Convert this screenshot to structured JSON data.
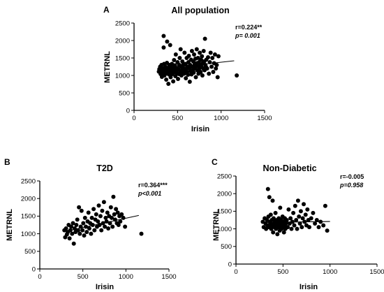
{
  "chart_data": [
    {
      "type": "scatter",
      "panel_label": "A",
      "title": "All population",
      "xlabel": "Irisin",
      "ylabel": "METRNL",
      "xlim": [
        0,
        1500
      ],
      "ylim": [
        0,
        2500
      ],
      "xticks": [
        0,
        500,
        1000,
        1500
      ],
      "yticks": [
        0,
        500,
        1000,
        1500,
        2000,
        2500
      ],
      "grid": false,
      "stats": {
        "r": "r=0.224**",
        "p": "p= 0.001"
      },
      "trendline": {
        "x": [
          280,
          1150
        ],
        "y": [
          1180,
          1420
        ]
      },
      "points": [
        [
          285,
          1110
        ],
        [
          290,
          1180
        ],
        [
          300,
          1250
        ],
        [
          305,
          1040
        ],
        [
          310,
          1130
        ],
        [
          315,
          1300
        ],
        [
          320,
          960
        ],
        [
          325,
          1210
        ],
        [
          330,
          1060
        ],
        [
          335,
          1160
        ],
        [
          340,
          2130
        ],
        [
          340,
          1800
        ],
        [
          345,
          1330
        ],
        [
          350,
          1000
        ],
        [
          355,
          1090
        ],
        [
          360,
          1250
        ],
        [
          365,
          1180
        ],
        [
          370,
          880
        ],
        [
          372,
          1060
        ],
        [
          378,
          1360
        ],
        [
          380,
          1970
        ],
        [
          385,
          1120
        ],
        [
          390,
          1210
        ],
        [
          395,
          760
        ],
        [
          400,
          1030
        ],
        [
          405,
          1300
        ],
        [
          410,
          1150
        ],
        [
          415,
          1870
        ],
        [
          420,
          950
        ],
        [
          425,
          1080
        ],
        [
          430,
          1240
        ],
        [
          435,
          1330
        ],
        [
          440,
          1040
        ],
        [
          445,
          1150
        ],
        [
          450,
          830
        ],
        [
          455,
          1200
        ],
        [
          460,
          1440
        ],
        [
          465,
          1100
        ],
        [
          470,
          1290
        ],
        [
          475,
          980
        ],
        [
          480,
          1600
        ],
        [
          485,
          1130
        ],
        [
          490,
          1060
        ],
        [
          495,
          1210
        ],
        [
          500,
          1380
        ],
        [
          505,
          900
        ],
        [
          510,
          1170
        ],
        [
          515,
          1040
        ],
        [
          520,
          1300
        ],
        [
          525,
          1500
        ],
        [
          530,
          1100
        ],
        [
          535,
          1750
        ],
        [
          540,
          1250
        ],
        [
          545,
          1000
        ],
        [
          550,
          1150
        ],
        [
          555,
          1400
        ],
        [
          560,
          1080
        ],
        [
          565,
          1300
        ],
        [
          570,
          1200
        ],
        [
          575,
          1050
        ],
        [
          580,
          1650
        ],
        [
          585,
          1150
        ],
        [
          590,
          1330
        ],
        [
          595,
          920
        ],
        [
          600,
          1200
        ],
        [
          605,
          1500
        ],
        [
          610,
          1100
        ],
        [
          615,
          1250
        ],
        [
          620,
          1020
        ],
        [
          625,
          1380
        ],
        [
          630,
          1560
        ],
        [
          635,
          1200
        ],
        [
          640,
          820
        ],
        [
          645,
          1300
        ],
        [
          650,
          1120
        ],
        [
          655,
          1450
        ],
        [
          660,
          1030
        ],
        [
          665,
          1700
        ],
        [
          670,
          1250
        ],
        [
          675,
          1150
        ],
        [
          680,
          1400
        ],
        [
          685,
          1080
        ],
        [
          690,
          1600
        ],
        [
          695,
          1300
        ],
        [
          700,
          1200
        ],
        [
          705,
          1480
        ],
        [
          710,
          950
        ],
        [
          715,
          1350
        ],
        [
          720,
          1750
        ],
        [
          725,
          1150
        ],
        [
          730,
          1270
        ],
        [
          735,
          1500
        ],
        [
          740,
          1050
        ],
        [
          745,
          1380
        ],
        [
          750,
          1200
        ],
        [
          755,
          1650
        ],
        [
          760,
          1300
        ],
        [
          765,
          1100
        ],
        [
          770,
          1450
        ],
        [
          775,
          1250
        ],
        [
          780,
          1550
        ],
        [
          785,
          1000
        ],
        [
          790,
          1350
        ],
        [
          795,
          1200
        ],
        [
          800,
          1700
        ],
        [
          805,
          1400
        ],
        [
          810,
          1150
        ],
        [
          815,
          2050
        ],
        [
          820,
          1300
        ],
        [
          825,
          1250
        ],
        [
          830,
          1450
        ],
        [
          840,
          1200
        ],
        [
          850,
          1520
        ],
        [
          860,
          1050
        ],
        [
          870,
          1380
        ],
        [
          880,
          1650
        ],
        [
          890,
          1250
        ],
        [
          900,
          1500
        ],
        [
          910,
          1100
        ],
        [
          920,
          1350
        ],
        [
          930,
          1600
        ],
        [
          940,
          1200
        ],
        [
          950,
          1300
        ],
        [
          960,
          950
        ],
        [
          970,
          1550
        ],
        [
          1180,
          1000
        ]
      ]
    },
    {
      "type": "scatter",
      "panel_label": "B",
      "title": "T2D",
      "xlabel": "Irisin",
      "ylabel": "METRNL",
      "xlim": [
        0,
        1500
      ],
      "ylim": [
        0,
        2500
      ],
      "xticks": [
        0,
        500,
        1000,
        1500
      ],
      "yticks": [
        0,
        500,
        1000,
        1500,
        2000,
        2500
      ],
      "grid": false,
      "stats": {
        "r": "r=0.364***",
        "p": "p<0.001"
      },
      "trendline": {
        "x": [
          280,
          1150
        ],
        "y": [
          1060,
          1520
        ]
      },
      "points": [
        [
          285,
          1100
        ],
        [
          295,
          900
        ],
        [
          305,
          1150
        ],
        [
          315,
          980
        ],
        [
          325,
          1050
        ],
        [
          335,
          1250
        ],
        [
          345,
          870
        ],
        [
          355,
          1100
        ],
        [
          365,
          1200
        ],
        [
          375,
          1000
        ],
        [
          385,
          1300
        ],
        [
          395,
          720
        ],
        [
          405,
          1150
        ],
        [
          415,
          1050
        ],
        [
          425,
          1250
        ],
        [
          435,
          1400
        ],
        [
          445,
          1100
        ],
        [
          455,
          1750
        ],
        [
          465,
          1000
        ],
        [
          475,
          1200
        ],
        [
          485,
          1650
        ],
        [
          495,
          1100
        ],
        [
          505,
          1300
        ],
        [
          515,
          950
        ],
        [
          525,
          1450
        ],
        [
          535,
          1200
        ],
        [
          545,
          1050
        ],
        [
          555,
          1350
        ],
        [
          565,
          1600
        ],
        [
          575,
          1150
        ],
        [
          585,
          1300
        ],
        [
          595,
          1000
        ],
        [
          605,
          1450
        ],
        [
          615,
          1250
        ],
        [
          625,
          1700
        ],
        [
          635,
          1100
        ],
        [
          645,
          1400
        ],
        [
          655,
          1550
        ],
        [
          665,
          1200
        ],
        [
          675,
          1350
        ],
        [
          685,
          1800
        ],
        [
          695,
          1250
        ],
        [
          705,
          1500
        ],
        [
          715,
          1100
        ],
        [
          725,
          1650
        ],
        [
          735,
          1300
        ],
        [
          745,
          1900
        ],
        [
          755,
          1200
        ],
        [
          765,
          1450
        ],
        [
          775,
          1350
        ],
        [
          785,
          1600
        ],
        [
          795,
          1150
        ],
        [
          805,
          1500
        ],
        [
          815,
          1300
        ],
        [
          825,
          1750
        ],
        [
          835,
          1450
        ],
        [
          845,
          1200
        ],
        [
          855,
          2050
        ],
        [
          865,
          1550
        ],
        [
          875,
          1400
        ],
        [
          885,
          1700
        ],
        [
          895,
          1300
        ],
        [
          905,
          1600
        ],
        [
          915,
          1250
        ],
        [
          925,
          1500
        ],
        [
          935,
          1350
        ],
        [
          950,
          1550
        ],
        [
          970,
          1450
        ],
        [
          990,
          1200
        ],
        [
          1180,
          1000
        ]
      ]
    },
    {
      "type": "scatter",
      "panel_label": "C",
      "title": "Non-Diabetic",
      "xlabel": "Irisin",
      "ylabel": "METRNL",
      "xlim": [
        0,
        1500
      ],
      "ylim": [
        0,
        2500
      ],
      "xticks": [
        0,
        500,
        1000,
        1500
      ],
      "yticks": [
        0,
        500,
        1000,
        1500,
        2000,
        2500
      ],
      "grid": false,
      "stats": {
        "r": "r=-0.005",
        "p": "p=0.958"
      },
      "trendline": {
        "x": [
          280,
          1000
        ],
        "y": [
          1180,
          1210
        ]
      },
      "points": [
        [
          285,
          1200
        ],
        [
          295,
          1050
        ],
        [
          305,
          1300
        ],
        [
          315,
          1150
        ],
        [
          320,
          1000
        ],
        [
          330,
          1250
        ],
        [
          335,
          1100
        ],
        [
          340,
          2130
        ],
        [
          345,
          1350
        ],
        [
          350,
          1050
        ],
        [
          355,
          1900
        ],
        [
          360,
          1200
        ],
        [
          365,
          1150
        ],
        [
          370,
          1400
        ],
        [
          375,
          1000
        ],
        [
          380,
          1250
        ],
        [
          385,
          1100
        ],
        [
          390,
          1800
        ],
        [
          395,
          900
        ],
        [
          400,
          1300
        ],
        [
          405,
          1150
        ],
        [
          410,
          1050
        ],
        [
          415,
          1200
        ],
        [
          420,
          1450
        ],
        [
          425,
          1000
        ],
        [
          430,
          1100
        ],
        [
          435,
          1250
        ],
        [
          440,
          850
        ],
        [
          445,
          1150
        ],
        [
          450,
          1050
        ],
        [
          455,
          1300
        ],
        [
          460,
          1200
        ],
        [
          465,
          950
        ],
        [
          470,
          1600
        ],
        [
          475,
          1100
        ],
        [
          480,
          1250
        ],
        [
          485,
          1000
        ],
        [
          490,
          1150
        ],
        [
          495,
          1350
        ],
        [
          500,
          1050
        ],
        [
          505,
          1200
        ],
        [
          510,
          900
        ],
        [
          515,
          1100
        ],
        [
          520,
          1300
        ],
        [
          525,
          1000
        ],
        [
          530,
          1150
        ],
        [
          540,
          1250
        ],
        [
          550,
          1050
        ],
        [
          560,
          1550
        ],
        [
          570,
          1150
        ],
        [
          580,
          1300
        ],
        [
          590,
          1000
        ],
        [
          600,
          1200
        ],
        [
          610,
          1450
        ],
        [
          620,
          1100
        ],
        [
          630,
          1650
        ],
        [
          640,
          1250
        ],
        [
          650,
          1000
        ],
        [
          660,
          1800
        ],
        [
          670,
          1350
        ],
        [
          680,
          1150
        ],
        [
          690,
          1500
        ],
        [
          700,
          1050
        ],
        [
          710,
          1300
        ],
        [
          720,
          1700
        ],
        [
          730,
          1200
        ],
        [
          740,
          1400
        ],
        [
          750,
          1100
        ],
        [
          760,
          1550
        ],
        [
          770,
          1250
        ],
        [
          780,
          1050
        ],
        [
          800,
          1300
        ],
        [
          820,
          1450
        ],
        [
          840,
          1150
        ],
        [
          860,
          1250
        ],
        [
          880,
          1050
        ],
        [
          900,
          1200
        ],
        [
          930,
          1100
        ],
        [
          950,
          1650
        ],
        [
          970,
          950
        ]
      ]
    }
  ]
}
